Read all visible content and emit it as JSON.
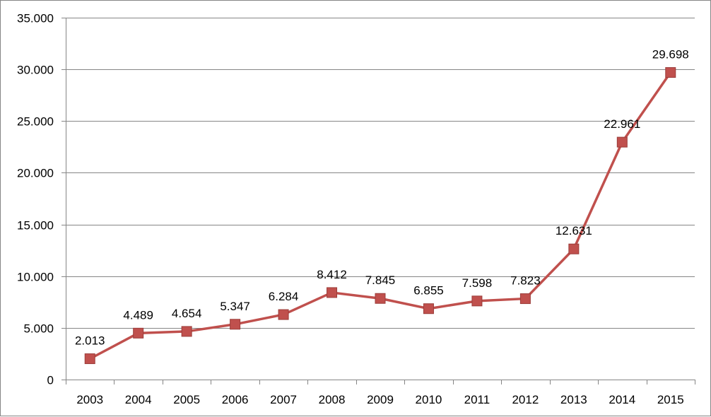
{
  "chart_data": {
    "type": "line",
    "title": "",
    "xlabel": "",
    "ylabel": "",
    "categories": [
      "2003",
      "2004",
      "2005",
      "2006",
      "2007",
      "2008",
      "2009",
      "2010",
      "2011",
      "2012",
      "2013",
      "2014",
      "2015"
    ],
    "series": [
      {
        "values": [
          2013,
          4489,
          4654,
          5347,
          6284,
          8412,
          7845,
          6855,
          7598,
          7823,
          12631,
          22961,
          29698
        ],
        "labels": [
          "2.013",
          "4.489",
          "4.654",
          "5.347",
          "6.284",
          "8.412",
          "7.845",
          "6.855",
          "7.598",
          "7.823",
          "12.631",
          "22.961",
          "29.698"
        ],
        "color": "#C0504D",
        "marker": "square"
      }
    ],
    "ylim": [
      0,
      35000
    ],
    "yticks": [
      0,
      5000,
      10000,
      15000,
      20000,
      25000,
      30000,
      35000
    ],
    "ytick_labels": [
      "0",
      "5.000",
      "10.000",
      "15.000",
      "20.000",
      "25.000",
      "30.000",
      "35.000"
    ],
    "grid": true,
    "gridline_color": "#868686",
    "legend": "none"
  }
}
